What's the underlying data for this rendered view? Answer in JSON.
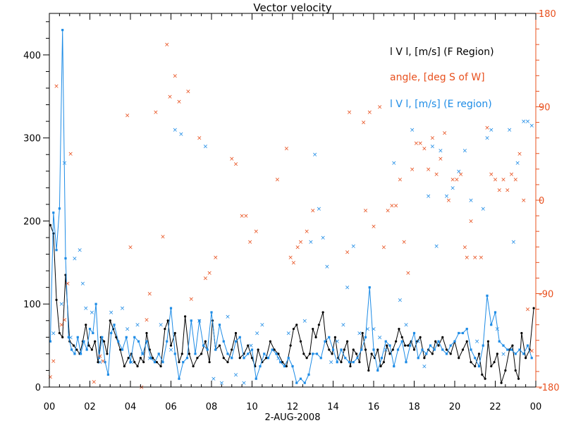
{
  "chart_data": {
    "type": "line",
    "title": "Vector velocity",
    "xlabel": "2-AUG-2008",
    "x_ticks": [
      "00",
      "02",
      "04",
      "06",
      "08",
      "10",
      "12",
      "14",
      "16",
      "18",
      "20",
      "22",
      "00"
    ],
    "xlim": [
      0,
      24
    ],
    "ylim_left": [
      0,
      450
    ],
    "y_ticks_left": [
      "0",
      "100",
      "200",
      "300",
      "400"
    ],
    "ylim_right": [
      -180,
      180
    ],
    "y_ticks_right": [
      "-180",
      "-90",
      "0",
      "90",
      "180"
    ],
    "legend_position": "top-right",
    "legend": [
      {
        "label": "l V l, [m/s] (F Region)",
        "color": "#000000"
      },
      {
        "label": "angle, [deg S of W]",
        "color": "#e8501e"
      },
      {
        "label": "l V l, [m/s] (E region)",
        "color": "#1e8ce6"
      }
    ],
    "series": [
      {
        "name": "l V l, [m/s] (F Region)",
        "axis": "left",
        "style": "line+dots",
        "color": "#000000",
        "x": [
          0.05,
          0.2,
          0.35,
          0.5,
          0.65,
          0.8,
          1.0,
          1.2,
          1.35,
          1.5,
          1.65,
          1.8,
          1.95,
          2.1,
          2.25,
          2.4,
          2.55,
          2.7,
          2.85,
          3.0,
          3.15,
          3.3,
          3.5,
          3.7,
          3.9,
          4.05,
          4.2,
          4.35,
          4.5,
          4.65,
          4.8,
          4.95,
          5.1,
          5.3,
          5.5,
          5.7,
          5.85,
          6.0,
          6.2,
          6.4,
          6.55,
          6.7,
          6.9,
          7.1,
          7.3,
          7.5,
          7.7,
          7.9,
          8.05,
          8.2,
          8.4,
          8.6,
          8.8,
          9.0,
          9.2,
          9.4,
          9.6,
          9.8,
          10.0,
          10.15,
          10.3,
          10.5,
          10.7,
          10.9,
          11.1,
          11.3,
          11.5,
          11.7,
          11.9,
          12.05,
          12.2,
          12.4,
          12.55,
          12.7,
          12.85,
          13.0,
          13.15,
          13.3,
          13.5,
          13.65,
          13.8,
          13.95,
          14.1,
          14.25,
          14.4,
          14.55,
          14.7,
          14.85,
          15.0,
          15.15,
          15.3,
          15.45,
          15.6,
          15.75,
          15.9,
          16.05,
          16.2,
          16.35,
          16.5,
          16.65,
          16.8,
          16.95,
          17.1,
          17.25,
          17.4,
          17.55,
          17.7,
          17.85,
          18.0,
          18.15,
          18.3,
          18.5,
          18.7,
          18.9,
          19.05,
          19.2,
          19.4,
          19.6,
          19.8,
          20.0,
          20.2,
          20.4,
          20.6,
          20.8,
          21.0,
          21.2,
          21.35,
          21.5,
          21.65,
          21.8,
          21.95,
          22.1,
          22.3,
          22.5,
          22.7,
          22.85,
          23.0,
          23.15,
          23.3,
          23.5,
          23.7,
          23.9
        ],
        "values": [
          195,
          185,
          105,
          65,
          60,
          135,
          55,
          50,
          45,
          40,
          55,
          75,
          50,
          45,
          55,
          30,
          60,
          55,
          40,
          80,
          70,
          60,
          45,
          25,
          35,
          40,
          30,
          25,
          35,
          30,
          65,
          45,
          35,
          30,
          25,
          70,
          80,
          50,
          65,
          30,
          40,
          85,
          40,
          25,
          35,
          40,
          55,
          30,
          80,
          45,
          50,
          35,
          30,
          45,
          65,
          35,
          40,
          50,
          35,
          25,
          45,
          30,
          35,
          55,
          45,
          40,
          30,
          25,
          50,
          70,
          75,
          55,
          40,
          35,
          40,
          70,
          60,
          75,
          90,
          55,
          45,
          40,
          60,
          35,
          30,
          45,
          55,
          25,
          45,
          40,
          30,
          65,
          45,
          20,
          40,
          35,
          45,
          25,
          30,
          50,
          40,
          45,
          55,
          70,
          60,
          50,
          50,
          55,
          45,
          55,
          60,
          35,
          45,
          40,
          55,
          50,
          60,
          45,
          40,
          55,
          35,
          45,
          55,
          30,
          25,
          40,
          15,
          10,
          55,
          25,
          30,
          40,
          5,
          20,
          45,
          50,
          20,
          10,
          65,
          35,
          45,
          95
        ]
      },
      {
        "name": "l V l, [m/s] (E region)",
        "axis": "left",
        "style": "line+squares",
        "color": "#1e8ce6",
        "x": [
          0.05,
          0.2,
          0.35,
          0.5,
          0.65,
          0.8,
          0.95,
          1.1,
          1.25,
          1.4,
          1.55,
          1.7,
          1.85,
          2.0,
          2.15,
          2.3,
          2.45,
          2.6,
          2.75,
          2.9,
          3.05,
          3.2,
          3.4,
          3.6,
          3.8,
          4.0,
          4.2,
          4.4,
          4.6,
          4.8,
          5.0,
          5.2,
          5.4,
          5.6,
          5.8,
          6.0,
          6.2,
          6.4,
          6.6,
          6.8,
          7.0,
          7.2,
          7.4,
          7.6,
          7.8,
          8.0,
          8.2,
          8.4,
          8.6,
          8.8,
          9.0,
          9.2,
          9.4,
          9.6,
          9.8,
          10.0,
          10.2,
          10.4,
          10.6,
          10.8,
          11.0,
          11.2,
          11.4,
          11.6,
          11.8,
          12.0,
          12.2,
          12.4,
          12.6,
          12.8,
          13.0,
          13.2,
          13.4,
          13.6,
          13.8,
          14.0,
          14.2,
          14.4,
          14.6,
          14.8,
          15.0,
          15.2,
          15.4,
          15.6,
          15.8,
          16.0,
          16.2,
          16.4,
          16.6,
          16.8,
          17.0,
          17.2,
          17.4,
          17.6,
          17.8,
          18.0,
          18.2,
          18.4,
          18.6,
          18.8,
          19.0,
          19.2,
          19.4,
          19.6,
          19.8,
          20.0,
          20.2,
          20.4,
          20.6,
          20.8,
          21.0,
          21.2,
          21.4,
          21.6,
          21.8,
          22.0,
          22.2,
          22.4,
          22.6,
          22.8,
          23.0,
          23.2,
          23.4,
          23.6,
          23.8
        ],
        "values": [
          55,
          210,
          165,
          215,
          430,
          155,
          60,
          45,
          40,
          60,
          40,
          55,
          45,
          70,
          65,
          100,
          35,
          60,
          30,
          15,
          65,
          75,
          55,
          45,
          60,
          30,
          60,
          55,
          40,
          55,
          35,
          30,
          40,
          30,
          55,
          95,
          40,
          10,
          30,
          35,
          80,
          40,
          80,
          50,
          45,
          90,
          45,
          75,
          55,
          40,
          35,
          55,
          60,
          35,
          40,
          45,
          10,
          25,
          40,
          35,
          45,
          40,
          30,
          25,
          35,
          25,
          5,
          10,
          5,
          15,
          40,
          40,
          35,
          55,
          60,
          45,
          30,
          45,
          35,
          30,
          30,
          35,
          45,
          60,
          120,
          45,
          20,
          35,
          55,
          50,
          25,
          45,
          55,
          30,
          50,
          65,
          35,
          45,
          40,
          50,
          45,
          55,
          45,
          40,
          50,
          55,
          65,
          65,
          70,
          45,
          35,
          25,
          50,
          110,
          75,
          90,
          55,
          50,
          45,
          45,
          40,
          45,
          40,
          50,
          35
        ]
      },
      {
        "name": "angle, [deg S of W]",
        "axis": "right",
        "style": "x-markers",
        "color": "#e8501e",
        "x": [
          0.05,
          0.2,
          0.35,
          0.6,
          0.75,
          0.9,
          1.05,
          2.2,
          2.5,
          2.65,
          3.85,
          4.0,
          4.55,
          4.8,
          4.95,
          5.25,
          5.6,
          5.8,
          5.95,
          6.2,
          6.4,
          6.85,
          7.0,
          7.4,
          7.7,
          7.9,
          8.2,
          9.0,
          9.2,
          9.5,
          9.7,
          9.9,
          10.2,
          11.25,
          11.7,
          11.9,
          12.05,
          12.25,
          12.4,
          12.7,
          13.0,
          14.7,
          14.8,
          15.5,
          15.6,
          15.8,
          16.0,
          16.3,
          16.5,
          16.7,
          16.9,
          17.1,
          17.3,
          17.5,
          17.7,
          17.9,
          18.1,
          18.3,
          18.5,
          18.7,
          18.9,
          19.1,
          19.3,
          19.5,
          19.7,
          19.9,
          20.1,
          20.3,
          20.5,
          20.6,
          20.8,
          21.0,
          21.3,
          21.6,
          21.8,
          22.0,
          22.2,
          22.4,
          22.6,
          22.8,
          23.0,
          23.2,
          23.4,
          23.6,
          23.8
        ],
        "values": [
          -170,
          -155,
          110,
          -120,
          -115,
          -80,
          45,
          -175,
          -150,
          -155,
          82,
          -45,
          -180,
          -115,
          -90,
          85,
          -35,
          150,
          100,
          120,
          95,
          105,
          -95,
          60,
          -75,
          -70,
          -55,
          40,
          35,
          -15,
          -15,
          -40,
          -30,
          20,
          50,
          -55,
          -60,
          -45,
          -40,
          -30,
          -10,
          -50,
          85,
          75,
          -10,
          85,
          -25,
          90,
          -45,
          -10,
          -5,
          -5,
          20,
          -40,
          -70,
          30,
          55,
          55,
          50,
          30,
          60,
          25,
          40,
          65,
          0,
          20,
          20,
          25,
          -45,
          -55,
          -20,
          -55,
          -55,
          70,
          25,
          20,
          10,
          20,
          10,
          25,
          20,
          45,
          0,
          -105,
          -145
        ]
      },
      {
        "name": "",
        "axis": "left",
        "style": "x-markers",
        "color": "#1e8ce6",
        "x": [
          0.2,
          0.6,
          0.75,
          1.05,
          1.25,
          1.5,
          1.65,
          1.8,
          2.1,
          2.5,
          3.05,
          3.6,
          3.85,
          4.05,
          4.35,
          4.6,
          4.95,
          5.5,
          6.0,
          6.2,
          6.5,
          7.4,
          7.7,
          8.1,
          8.5,
          8.8,
          9.2,
          9.6,
          9.95,
          10.25,
          10.5,
          11.3,
          11.8,
          12.6,
          12.9,
          13.1,
          13.3,
          13.5,
          13.7,
          13.9,
          14.2,
          14.5,
          14.7,
          15.0,
          15.3,
          15.7,
          16.0,
          16.3,
          16.6,
          17.0,
          17.3,
          17.6,
          17.9,
          18.2,
          18.5,
          18.7,
          18.9,
          19.1,
          19.3,
          19.6,
          19.9,
          20.2,
          20.5,
          20.8,
          21.1,
          21.4,
          21.6,
          21.8,
          22.1,
          22.4,
          22.7,
          22.9,
          23.1,
          23.4,
          23.6,
          23.8
        ],
        "values": [
          65,
          100,
          270,
          60,
          155,
          165,
          125,
          95,
          90,
          30,
          90,
          95,
          70,
          30,
          75,
          40,
          35,
          75,
          45,
          310,
          305,
          80,
          290,
          10,
          5,
          85,
          15,
          5,
          50,
          65,
          75,
          35,
          65,
          80,
          175,
          280,
          215,
          180,
          145,
          30,
          55,
          75,
          120,
          170,
          65,
          70,
          70,
          60,
          45,
          270,
          105,
          75,
          310,
          55,
          25,
          230,
          290,
          170,
          285,
          230,
          240,
          260,
          285,
          225,
          55,
          215,
          300,
          310,
          70,
          40,
          310,
          175,
          270,
          320,
          320,
          315
        ]
      }
    ]
  }
}
